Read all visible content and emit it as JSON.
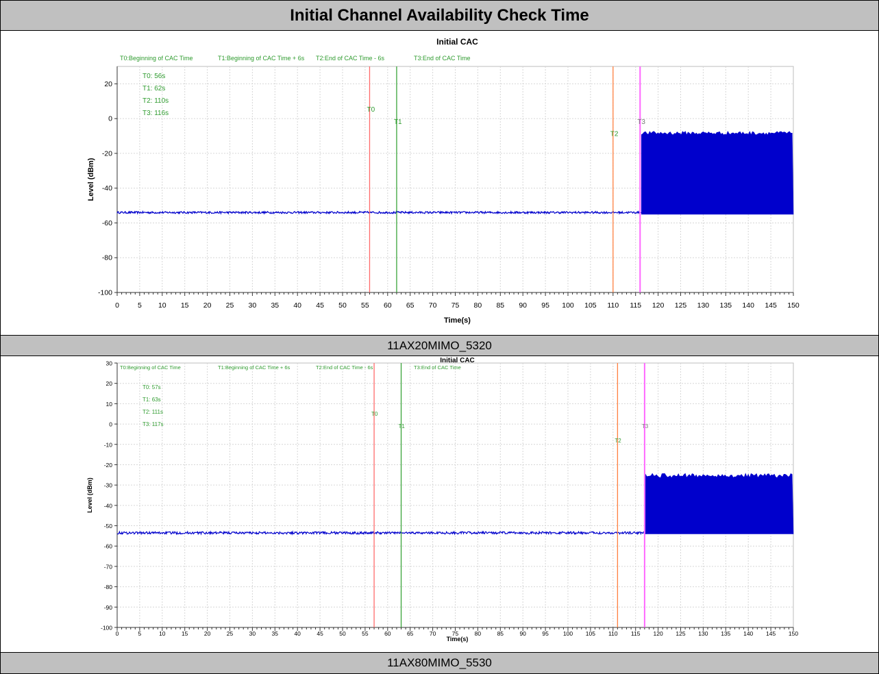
{
  "page": {
    "title": "Initial Channel Availability Check Time"
  },
  "chart_data": [
    {
      "type": "line",
      "title": "Initial CAC",
      "caption": "11AX20MIMO_5320",
      "xlabel": "Time(s)",
      "ylabel": "Level (dBm)",
      "xlim": [
        0,
        150
      ],
      "ylim": [
        -100,
        30
      ],
      "xticks": [
        0,
        5,
        10,
        15,
        20,
        25,
        30,
        35,
        40,
        45,
        50,
        55,
        60,
        65,
        70,
        75,
        80,
        85,
        90,
        95,
        100,
        105,
        110,
        115,
        120,
        125,
        130,
        135,
        140,
        145,
        150
      ],
      "yticks": [
        -100,
        -80,
        -60,
        -40,
        -20,
        0,
        20
      ],
      "grid": true,
      "legend_entries": [
        "T0:Beginning of CAC Time",
        "T1:Beginning of CAC Time + 6s",
        "T2:End of CAC Time - 6s",
        "T3:End of CAC Time"
      ],
      "annotations": [
        "T0: 56s",
        "T1: 62s",
        "T2: 110s",
        "T3: 116s"
      ],
      "markers": [
        {
          "label": "T0",
          "x": 56,
          "color": "#ff6a6a",
          "label_y": 4
        },
        {
          "label": "T1",
          "x": 62,
          "color": "#39a339",
          "label_y": -3
        },
        {
          "label": "T2",
          "x": 110,
          "color": "#ff7f3f",
          "label_y": -10
        },
        {
          "label": "T3",
          "x": 116,
          "color": "#ff66ff",
          "label_y": -3
        }
      ],
      "series": [
        {
          "baseline_dbm": -54,
          "burst_start_s": 116.3,
          "burst_end_s": 150,
          "burst_top_dbm": -9,
          "burst_bottom_dbm": -55,
          "color": "#0000cc"
        }
      ]
    },
    {
      "type": "line",
      "title": "Initial CAC",
      "caption": "11AX80MIMO_5530",
      "xlabel": "Time(s)",
      "ylabel": "Level (dBm)",
      "xlim": [
        0,
        150
      ],
      "ylim": [
        -100,
        30
      ],
      "xticks": [
        0,
        5,
        10,
        15,
        20,
        25,
        30,
        35,
        40,
        45,
        50,
        55,
        60,
        65,
        70,
        75,
        80,
        85,
        90,
        95,
        100,
        105,
        110,
        115,
        120,
        125,
        130,
        135,
        140,
        145,
        150
      ],
      "yticks": [
        -100,
        -90,
        -80,
        -70,
        -60,
        -50,
        -40,
        -30,
        -20,
        -10,
        0,
        10,
        20,
        30
      ],
      "grid": true,
      "legend_entries": [
        "T0:Beginning of CAC Time",
        "T1:Beginning of CAC Time + 6s",
        "T2:End of CAC Time - 6s",
        "T3:End of CAC Time"
      ],
      "annotations": [
        "T0: 57s",
        "T1: 63s",
        "T2: 111s",
        "T3: 117s"
      ],
      "markers": [
        {
          "label": "T0",
          "x": 57,
          "color": "#ff6a6a",
          "label_y": 4
        },
        {
          "label": "T1",
          "x": 63,
          "color": "#39a339",
          "label_y": -2
        },
        {
          "label": "T2",
          "x": 111,
          "color": "#ff7f3f",
          "label_y": -9
        },
        {
          "label": "T3",
          "x": 117,
          "color": "#ff66ff",
          "label_y": -2
        }
      ],
      "series": [
        {
          "baseline_dbm": -53.5,
          "burst_start_s": 117.2,
          "burst_end_s": 150,
          "burst_top_dbm": -26,
          "burst_bottom_dbm": -54,
          "color": "#0000cc"
        }
      ]
    }
  ]
}
